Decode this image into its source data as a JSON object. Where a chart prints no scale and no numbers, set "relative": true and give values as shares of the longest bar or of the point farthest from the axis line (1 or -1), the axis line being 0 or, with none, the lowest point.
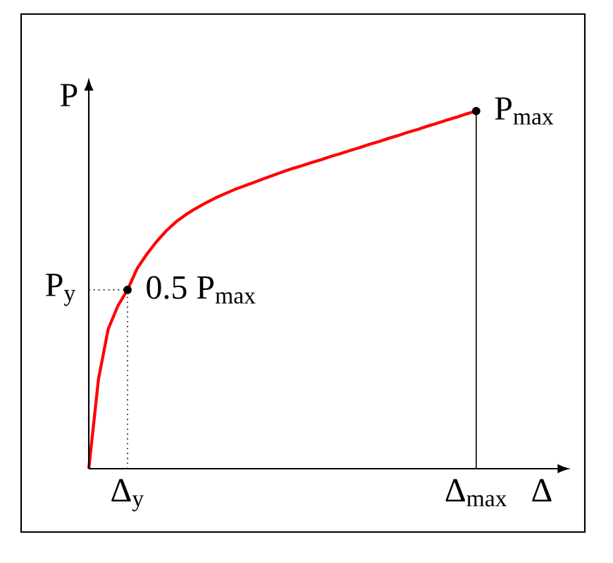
{
  "chart_data": {
    "type": "line",
    "relative": true,
    "xlabel": "Δ",
    "ylabel": "P",
    "categories": [
      null,
      null,
      null,
      null,
      "Δ$_{y}$",
      null,
      null,
      null,
      null,
      null,
      null,
      null,
      null,
      null,
      null,
      null,
      null,
      null,
      null,
      null,
      null,
      null,
      null,
      null,
      null,
      null,
      null,
      null,
      null,
      null,
      null,
      null,
      null,
      null,
      null,
      null,
      null,
      null,
      null,
      null,
      "Δ$_{max}$"
    ],
    "series": [
      {
        "color": "#ff0000",
        "values": [
          0,
          0.25,
          0.39,
          0.455,
          0.5,
          0.56,
          0.6,
          0.635,
          0.665,
          0.69,
          0.71,
          0.727,
          0.742,
          0.756,
          0.768,
          0.78,
          0.79,
          0.8,
          0.81,
          0.82,
          0.83,
          0.839,
          0.847,
          0.856,
          0.864,
          0.873,
          0.881,
          0.89,
          0.898,
          0.907,
          0.915,
          0.924,
          0.932,
          0.941,
          0.949,
          0.958,
          0.966,
          0.975,
          0.983,
          0.992,
          1
        ]
      }
    ],
    "ref_lines": [
      {
        "axis": "x",
        "value": "Δ$_{y}$",
        "line_style": "dotted"
      },
      {
        "axis": "y",
        "value": 0.5,
        "label": "P$_{y}$",
        "line_style": "dotted"
      },
      {
        "axis": "x",
        "value": "Δ$_{max}$",
        "line_style": "solid"
      }
    ],
    "annotations": [
      {
        "text": "0.5 P$_{max}$",
        "x": "Δ$_{y}$",
        "y": 0.5
      },
      {
        "text": "P$_{max}$",
        "x": "Δ$_{max}$",
        "y": 1
      }
    ],
    "marker": "none",
    "line_style": "solid"
  }
}
